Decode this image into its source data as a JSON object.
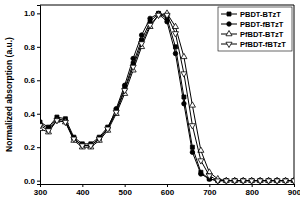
{
  "chart_data": {
    "type": "line",
    "y_label": "Normalized absorption (a.u.)",
    "x": [
      300,
      320,
      340,
      360,
      380,
      400,
      420,
      440,
      460,
      480,
      500,
      520,
      540,
      560,
      580,
      600,
      620,
      640,
      660,
      680,
      700,
      720,
      740,
      760,
      780,
      800,
      820,
      840,
      860,
      880,
      900
    ],
    "series": [
      {
        "name": "PBDT-BTzT",
        "color": "#000000",
        "marker": "square",
        "values": [
          0.35,
          0.32,
          0.38,
          0.37,
          0.26,
          0.22,
          0.22,
          0.26,
          0.32,
          0.42,
          0.55,
          0.7,
          0.84,
          0.95,
          1.0,
          0.97,
          0.8,
          0.5,
          0.2,
          0.05,
          0.01,
          0,
          0,
          0,
          0,
          0,
          0,
          0,
          0,
          0,
          0
        ]
      },
      {
        "name": "PBDT-fBTzT",
        "color": "#000000",
        "marker": "circle",
        "values": [
          0.34,
          0.31,
          0.37,
          0.36,
          0.25,
          0.21,
          0.21,
          0.25,
          0.31,
          0.43,
          0.57,
          0.73,
          0.87,
          0.97,
          1.0,
          0.95,
          0.76,
          0.46,
          0.17,
          0.04,
          0.01,
          0,
          0,
          0,
          0,
          0,
          0,
          0,
          0,
          0,
          0
        ]
      },
      {
        "name": "PfBDT-BTzT",
        "color": "#000000",
        "marker": "triangle-up",
        "values": [
          0.31,
          0.29,
          0.36,
          0.35,
          0.24,
          0.2,
          0.2,
          0.24,
          0.3,
          0.4,
          0.52,
          0.66,
          0.8,
          0.92,
          0.99,
          1.0,
          0.92,
          0.74,
          0.45,
          0.18,
          0.05,
          0.01,
          0,
          0,
          0,
          0,
          0,
          0,
          0,
          0,
          0
        ]
      },
      {
        "name": "PfBDT-fBTzT",
        "color": "#000000",
        "marker": "triangle-down",
        "values": [
          0.33,
          0.3,
          0.36,
          0.35,
          0.25,
          0.21,
          0.21,
          0.25,
          0.31,
          0.41,
          0.54,
          0.68,
          0.82,
          0.93,
          0.99,
          0.99,
          0.88,
          0.64,
          0.33,
          0.12,
          0.03,
          0,
          0,
          0,
          0,
          0,
          0,
          0,
          0,
          0,
          0
        ]
      }
    ],
    "xlim": [
      300,
      900
    ],
    "xticks": [
      300,
      400,
      500,
      600,
      700,
      800,
      900
    ],
    "ylim": [
      -0.02,
      1.05
    ],
    "yticks": [
      {
        "value": 0,
        "label": "0.0"
      },
      0.2,
      0.4,
      0.6,
      0.8,
      {
        "value": 1,
        "label": "1.0"
      }
    ],
    "legend": "upper right",
    "grid": false
  }
}
